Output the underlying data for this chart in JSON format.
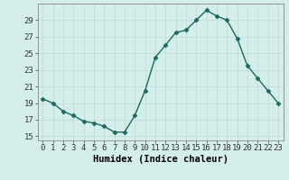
{
  "x": [
    0,
    1,
    2,
    3,
    4,
    5,
    6,
    7,
    8,
    9,
    10,
    11,
    12,
    13,
    14,
    15,
    16,
    17,
    18,
    19,
    20,
    21,
    22,
    23
  ],
  "y": [
    19.5,
    19.0,
    18.0,
    17.5,
    16.8,
    16.6,
    16.2,
    15.5,
    15.5,
    17.5,
    20.5,
    24.5,
    26.0,
    27.5,
    27.8,
    29.0,
    30.2,
    29.5,
    29.0,
    26.8,
    23.5,
    22.0,
    20.5,
    19.0
  ],
  "line_color": "#1a6b5a",
  "marker": "D",
  "markersize": 2.5,
  "linewidth": 1.0,
  "bg_color": "#d4eeec",
  "grid_color": "#c0d8d6",
  "xlabel": "Humidex (Indice chaleur)",
  "xlim": [
    -0.5,
    23.5
  ],
  "ylim": [
    14.5,
    31
  ],
  "yticks": [
    15,
    17,
    19,
    21,
    23,
    25,
    27,
    29
  ],
  "xtick_labels": [
    "0",
    "1",
    "2",
    "3",
    "4",
    "5",
    "6",
    "7",
    "8",
    "9",
    "10",
    "11",
    "12",
    "13",
    "14",
    "15",
    "16",
    "17",
    "18",
    "19",
    "20",
    "21",
    "22",
    "23"
  ],
  "xlabel_fontsize": 7.5,
  "tick_fontsize": 6.5
}
